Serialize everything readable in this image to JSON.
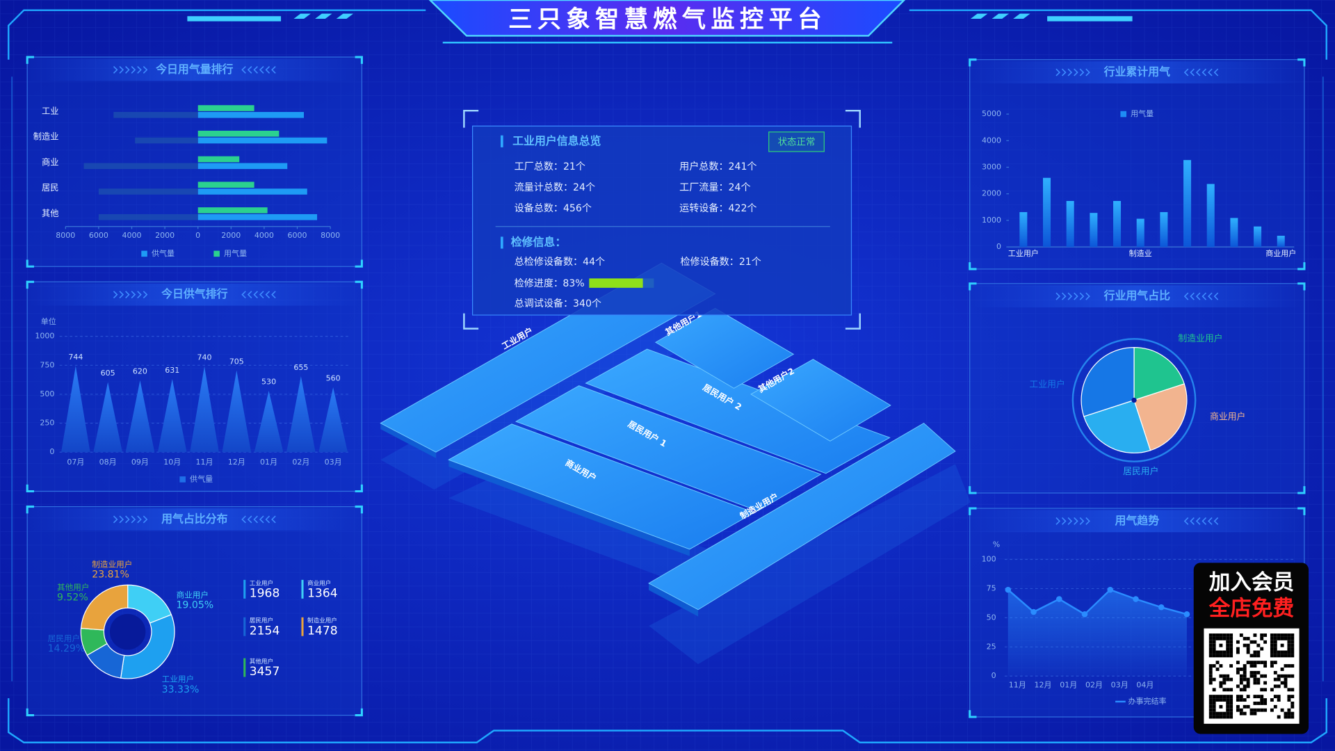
{
  "header": {
    "title": "三只象智慧燃气监控平台"
  },
  "chart_data": [
    {
      "type": "bar",
      "orientation": "horizontal",
      "title": "今日用气量排行",
      "categories": [
        "工业",
        "制造业",
        "商业",
        "居民",
        "其他"
      ],
      "series": [
        {
          "name": "供气量",
          "color": "#1e9bf5",
          "values": [
            6400,
            7800,
            5400,
            6600,
            7200
          ]
        },
        {
          "name": "用气量",
          "color": "#2bd18f",
          "values": [
            3400,
            4900,
            2500,
            3400,
            4200
          ]
        },
        {
          "color": "#1b4fb0",
          "values": [
            -5100,
            -3800,
            -6900,
            -6000,
            -6000
          ]
        }
      ],
      "xlim": [
        -8000,
        8000
      ],
      "xticks": [
        {
          "value": -8000,
          "label": "8000"
        },
        {
          "value": -6000,
          "label": "6000"
        },
        {
          "value": -4000,
          "label": "4000"
        },
        {
          "value": -2000,
          "label": "2000"
        },
        0,
        2000,
        4000,
        6000,
        8000
      ]
    },
    {
      "type": "pictorial",
      "title": "今日供气排行",
      "y_label": "单位",
      "categories": [
        "07月",
        "08月",
        "09月",
        "10月",
        "11月",
        "12月",
        "01月",
        "02月",
        "03月"
      ],
      "series": [
        {
          "name": "供气量",
          "color": "#1f6fe8",
          "values": [
            744,
            605,
            620,
            631,
            740,
            705,
            530,
            655,
            560
          ]
        }
      ],
      "ylim": [
        0,
        1000
      ],
      "yticks": [
        0,
        250,
        500,
        750,
        1000
      ],
      "grid": true
    },
    {
      "type": "donut",
      "title": "用气占比分布",
      "categories": [
        "商业用户",
        "工业用户",
        "居民用户",
        "其他用户",
        "制造业用户"
      ],
      "values": [
        19.05,
        33.33,
        14.29,
        9.52,
        23.81
      ],
      "value_labels": [
        "19.05%",
        "33.33%",
        "14.29%",
        "9.52%",
        "23.81%"
      ],
      "colors": [
        "#3fcff5",
        "#1ea0f0",
        "#1766d6",
        "#2fb85a",
        "#e8a33d"
      ]
    },
    {
      "type": "bar",
      "orientation": "vertical",
      "title": "行业累计用气",
      "categories": [
        "工业用户",
        null,
        null,
        null,
        null,
        "制造业",
        null,
        null,
        null,
        null,
        null,
        "商业用户"
      ],
      "series": [
        {
          "name": "用气量",
          "color": "#1e8cf5",
          "values": [
            1310,
            2600,
            1730,
            1280,
            1730,
            1060,
            1310,
            3270,
            2370,
            1090,
            770,
            420
          ]
        }
      ],
      "ylim": [
        0,
        5000
      ],
      "yticks": [
        0,
        1000,
        2000,
        3000,
        4000,
        5000
      ]
    },
    {
      "type": "pie",
      "title": "行业用气占比",
      "categories": [
        "制造业用户",
        "商业用户",
        "居民用户",
        "工业用户"
      ],
      "values": [
        20,
        25,
        25,
        30
      ],
      "colors": [
        "#1fc48f",
        "#f2b48f",
        "#29aef0",
        "#1677e6"
      ]
    },
    {
      "type": "line",
      "title": "用气趋势",
      "y_label": "%",
      "categories": [
        "11月",
        "12月",
        "01月",
        "02月",
        "03月",
        "04月",
        null,
        null
      ],
      "series": [
        {
          "name": "办事完结率",
          "color": "#2a8cff",
          "values": [
            74,
            55,
            66,
            53,
            74,
            66,
            59,
            53
          ]
        }
      ],
      "ylim": [
        0,
        100
      ],
      "yticks": [
        0,
        25,
        50,
        75,
        100
      ],
      "grid": true,
      "area": true
    }
  ],
  "user_stats": [
    {
      "label": "工业用户",
      "value": 1968,
      "color": "#1ea0f0"
    },
    {
      "label": "商业用户",
      "value": 1364,
      "color": "#3fcff5"
    },
    {
      "label": "居民用户",
      "value": 2154,
      "color": "#1766d6"
    },
    {
      "label": "制造业用户",
      "value": 1478,
      "color": "#e8a33d"
    },
    {
      "label": "其他用户",
      "value": 3457,
      "color": "#2fb85a"
    }
  ],
  "overview": {
    "title": "工业用户信息总览",
    "status": "状态正常",
    "items": [
      "工厂总数：21个",
      "用户总数：241个",
      "流量计总数：24个",
      "工厂流量：24个",
      "设备总数：456个",
      "运转设备：422个"
    ]
  },
  "maintenance": {
    "title": "检修信息：",
    "items": [
      "总检修设备数：44个",
      "检修设备数：21个"
    ],
    "progress": {
      "label": "检修进度：",
      "value": 83,
      "value_label": "83%"
    },
    "debug": "总调试设备：340个"
  },
  "map": {
    "zones": [
      "工业用户",
      "商业用户",
      "居民用户 1",
      "居民用户 2",
      "制造业用户",
      "其他用户2",
      "其他用户1"
    ]
  },
  "promo": {
    "line1": "加入会员",
    "line2": "全店免费"
  }
}
